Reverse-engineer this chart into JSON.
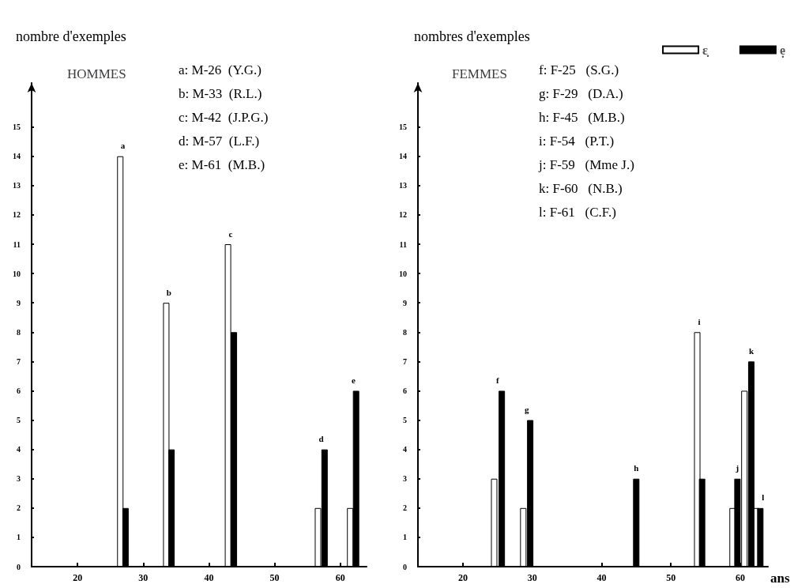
{
  "chart_data": [
    {
      "type": "bar",
      "title": "HOMMES",
      "ylabel": "nombre d'exemples",
      "series": [
        {
          "color": "#ffffff",
          "x": [
            26.5,
            33.5,
            42.9,
            56.6,
            61.5
          ],
          "values": [
            14,
            9,
            11,
            2,
            2
          ]
        },
        {
          "color": "#000000",
          "x": [
            27.3,
            34.3,
            43.8,
            57.6,
            62.4
          ],
          "values": [
            2,
            4,
            8,
            4,
            6
          ]
        }
      ],
      "xlim": [
        13,
        64
      ],
      "xticks": [
        20,
        30,
        40,
        50,
        60
      ],
      "ylim": [
        0,
        16.5
      ],
      "yticks": [
        0,
        1,
        2,
        3,
        4,
        5,
        6,
        7,
        8,
        9,
        10,
        11,
        12,
        13,
        14,
        15
      ],
      "grid": false,
      "legend": false,
      "annotations": [
        "a: M-26  (Y.G.)",
        "b: M-33  (R.L.)",
        "c: M-42  (J.P.G.)",
        "d: M-57  (L.F.)",
        "e: M-61  (M.B.)",
        {
          "text": "a",
          "x": 26.9,
          "y": 14
        },
        {
          "text": "b",
          "x": 33.9,
          "y": 9
        },
        {
          "text": "c",
          "x": 43.3,
          "y": 11
        },
        {
          "text": "d",
          "x": 57.1,
          "y": 4
        },
        {
          "text": "e",
          "x": 62,
          "y": 6
        }
      ]
    },
    {
      "type": "bar",
      "title": "FEMMES",
      "ylabel": "nombres d'exemples",
      "xlabel": "ans",
      "series": [
        {
          "name": "ɛ̣",
          "color": "#ffffff",
          "x": [
            24.5,
            28.7,
            44.3,
            53.8,
            58.9,
            60.6,
            62.3
          ],
          "values": [
            3,
            2,
            null,
            8,
            2,
            6,
            2
          ]
        },
        {
          "name": "ẹ",
          "color": "#000000",
          "x": [
            25.6,
            29.7,
            45,
            54.5,
            59.6,
            61.6,
            62.9
          ],
          "values": [
            6,
            5,
            3,
            3,
            3,
            7,
            2
          ]
        }
      ],
      "xlim": [
        13.5,
        64
      ],
      "xticks": [
        20,
        30,
        40,
        50,
        60
      ],
      "ylim": [
        0,
        16.5
      ],
      "yticks": [
        0,
        1,
        2,
        3,
        4,
        5,
        6,
        7,
        8,
        9,
        10,
        11,
        12,
        13,
        14,
        15
      ],
      "grid": false,
      "legend": "top right",
      "annotations": [
        "f: F-25   (S.G.)",
        "g: F-29   (D.A.)",
        "h: F-45   (M.B.)",
        "i: F-54   (P.T.)",
        "j: F-59   (Mme J.)",
        "k: F-60   (N.B.)",
        "l: F-61   (C.F.)",
        {
          "text": "f",
          "x": 25,
          "y": 6
        },
        {
          "text": "g",
          "x": 29.2,
          "y": 5
        },
        {
          "text": "h",
          "x": 45,
          "y": 3
        },
        {
          "text": "i",
          "x": 54.1,
          "y": 8
        },
        {
          "text": "j",
          "x": 59.6,
          "y": 3
        },
        {
          "text": "k",
          "x": 61.6,
          "y": 7
        },
        {
          "text": "l",
          "x": 63.3,
          "y": 2
        }
      ]
    }
  ]
}
